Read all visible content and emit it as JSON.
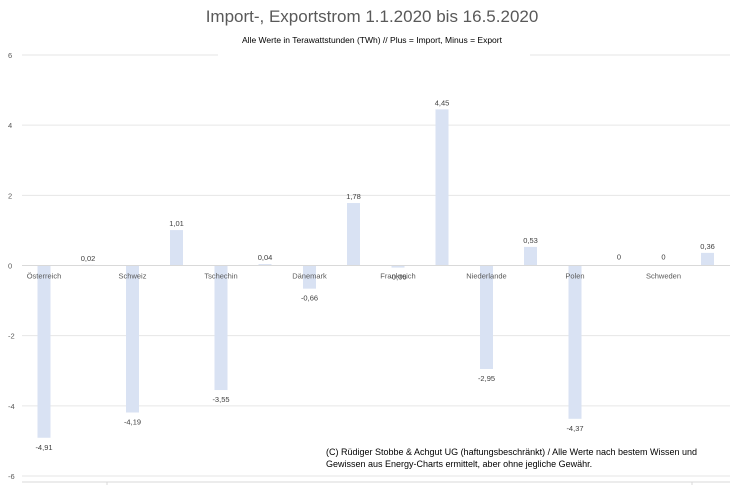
{
  "chart_data": {
    "type": "bar",
    "title": "Import-, Exportstrom 1.1.2020 bis 16.5.2020",
    "subtitle": "Alle Werte in Terawattstunden (TWh) // Plus = Import, Minus = Export",
    "ylim": [
      -6,
      6
    ],
    "yticks": [
      "-6",
      "-4",
      "-2",
      "0",
      "2",
      "4",
      "6"
    ],
    "grid": true,
    "bar_color": "#d9e2f3",
    "categories": [
      "Österreich",
      "Schweiz",
      "Tschechin",
      "Dänemark",
      "Frankreich",
      "Niederlande",
      "Polen",
      "Schweden"
    ],
    "series": [
      {
        "values": [
          -4.91,
          -4.19,
          -3.55,
          -0.66,
          -0.06,
          -2.95,
          -4.37,
          0
        ]
      },
      {
        "values": [
          0.02,
          1.01,
          0.04,
          1.78,
          4.45,
          0.53,
          0,
          0.36
        ]
      }
    ],
    "data_labels": [
      [
        "-4,91",
        "-4,19",
        "-3,55",
        "-0,66",
        "-0,06",
        "-2,95",
        "-4,37",
        "0"
      ],
      [
        "0,02",
        "1,01",
        "0,04",
        "1,78",
        "4,45",
        "0,53",
        "0",
        "0,36"
      ]
    ]
  },
  "footnote": {
    "line1": "(C) Rüdiger Stobbe & Achgut UG (haftungsbeschränkt) / Alle Werte nach bestem Wissen und",
    "line2": "Gewissen aus Energy-Charts ermittelt, aber ohne jegliche Gewähr."
  }
}
